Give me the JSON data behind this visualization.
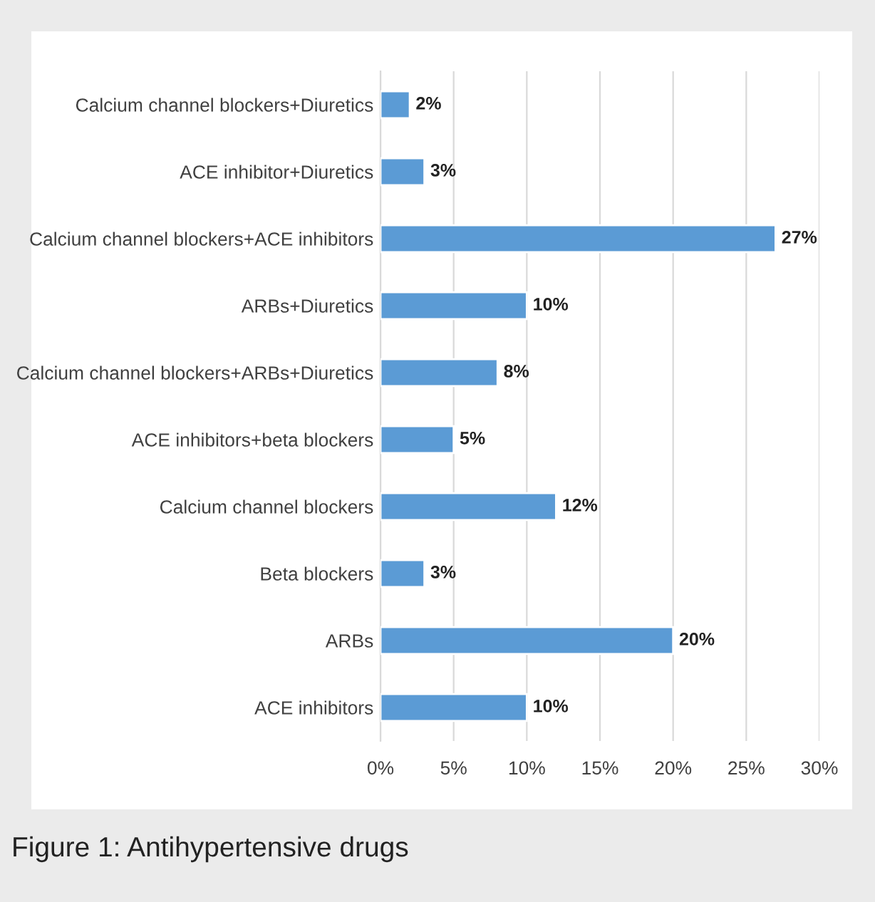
{
  "chart_data": {
    "type": "bar",
    "orientation": "horizontal",
    "categories": [
      "Calcium channel blockers+Diuretics",
      "ACE inhibitor+Diuretics",
      "Calcium channel blockers+ACE inhibitors",
      "ARBs+Diuretics",
      "Calcium channel blockers+ARBs+Diuretics",
      "ACE inhibitors+beta blockers",
      "Calcium channel blockers",
      "Beta blockers",
      "ARBs",
      "ACE inhibitors"
    ],
    "values": [
      2,
      3,
      27,
      10,
      8,
      5,
      12,
      3,
      20,
      10
    ],
    "value_labels": [
      "2%",
      "3%",
      "27%",
      "10%",
      "8%",
      "5%",
      "12%",
      "3%",
      "20%",
      "10%"
    ],
    "color": "#5b9bd5",
    "xlim": [
      0,
      30
    ],
    "xticks": [
      {
        "value": 0,
        "label": "0%"
      },
      {
        "value": 5,
        "label": "5%"
      },
      {
        "value": 10,
        "label": "10%"
      },
      {
        "value": 15,
        "label": "15%"
      },
      {
        "value": 20,
        "label": "20%"
      },
      {
        "value": 25,
        "label": "25%"
      },
      {
        "value": 30,
        "label": "30%"
      }
    ],
    "grid": "x",
    "annotations": [
      "Figure 1: Antihypertensive drugs"
    ]
  }
}
